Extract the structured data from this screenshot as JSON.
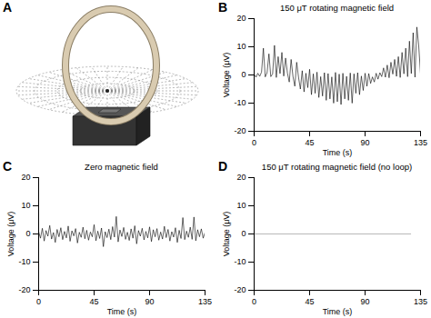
{
  "diagram": {
    "label": "A"
  },
  "chart_data": [
    {
      "type": "line",
      "label": "B",
      "title": "150 μT rotating magnetic field",
      "x_label": "Time (s)",
      "y_label": "Voltage (μV)",
      "color": "#000000",
      "xlim": [
        0,
        135
      ],
      "xticks": [
        0,
        45,
        90,
        135
      ],
      "ylim": [
        -20,
        20
      ],
      "yticks": [
        -20,
        -10,
        0,
        10,
        20
      ],
      "x": [
        0,
        1.5,
        3,
        4.5,
        6,
        7.5,
        9,
        10.5,
        12,
        13.5,
        15,
        16.5,
        18,
        19.5,
        21,
        22.5,
        24,
        25.5,
        27,
        28.5,
        30,
        31.5,
        33,
        34.5,
        36,
        37.5,
        39,
        40.5,
        42,
        43.5,
        45,
        46.5,
        48,
        49.5,
        51,
        52.5,
        54,
        55.5,
        57,
        58.5,
        60,
        61.5,
        63,
        64.5,
        66,
        67.5,
        69,
        70.5,
        72,
        73.5,
        75,
        76.5,
        78,
        79.5,
        81,
        82.5,
        84,
        85.5,
        87,
        88.5,
        90,
        91.5,
        93,
        94.5,
        96,
        97.5,
        99,
        100.5,
        102,
        103.5,
        105,
        106.5,
        108,
        109.5,
        111,
        112.5,
        114,
        115.5,
        117,
        118.5,
        120,
        121.5,
        123,
        124.5,
        126,
        127.5,
        129,
        130.5,
        132,
        133.5,
        135
      ],
      "values": [
        0.3,
        -0.8,
        0.6,
        -0.5,
        1.0,
        9.5,
        -0.7,
        0.8,
        7.5,
        -0.6,
        0.4,
        10.5,
        -0.9,
        6.5,
        0.5,
        8.0,
        -0.4,
        6.0,
        0.7,
        -2.5,
        5.5,
        -0.5,
        -4.0,
        4.5,
        -0.8,
        -5.0,
        1.5,
        -6.0,
        0.6,
        -4.5,
        2.0,
        -7.0,
        0.4,
        -6.5,
        1.0,
        -8.0,
        -0.6,
        -7.5,
        0.8,
        -9.0,
        0.5,
        -8.5,
        -0.7,
        -10.0,
        0.9,
        -9.5,
        0.3,
        -10.5,
        0.6,
        -8.5,
        -0.5,
        -9.0,
        0.7,
        -10.0,
        0.4,
        -6.5,
        0.8,
        -7.0,
        -0.4,
        -5.5,
        0.6,
        -4.0,
        0.5,
        -3.0,
        -0.7,
        -2.5,
        0.6,
        -1.5,
        0.8,
        -0.6,
        2.5,
        -0.8,
        3.5,
        -1.0,
        4.5,
        0.3,
        5.5,
        -0.5,
        6.5,
        -0.9,
        8.0,
        0.4,
        9.5,
        -0.6,
        12.0,
        0.5,
        15.0,
        -0.8,
        17.0,
        10.5,
        0.4
      ]
    },
    {
      "type": "line",
      "label": "C",
      "title": "Zero magnetic field",
      "x_label": "Time (s)",
      "y_label": "Voltage (μV)",
      "color": "#000000",
      "xlim": [
        0,
        135
      ],
      "xticks": [
        0,
        45,
        90,
        135
      ],
      "ylim": [
        -20,
        20
      ],
      "yticks": [
        -20,
        -10,
        0,
        10,
        20
      ],
      "x": [
        0,
        1.5,
        3,
        4.5,
        6,
        7.5,
        9,
        10.5,
        12,
        13.5,
        15,
        16.5,
        18,
        19.5,
        21,
        22.5,
        24,
        25.5,
        27,
        28.5,
        30,
        31.5,
        33,
        34.5,
        36,
        37.5,
        39,
        40.5,
        42,
        43.5,
        45,
        46.5,
        48,
        49.5,
        51,
        52.5,
        54,
        55.5,
        57,
        58.5,
        60,
        61.5,
        63,
        64.5,
        66,
        67.5,
        69,
        70.5,
        72,
        73.5,
        75,
        76.5,
        78,
        79.5,
        81,
        82.5,
        84,
        85.5,
        87,
        88.5,
        90,
        91.5,
        93,
        94.5,
        96,
        97.5,
        99,
        100.5,
        102,
        103.5,
        105,
        106.5,
        108,
        109.5,
        111,
        112.5,
        114,
        115.5,
        117,
        118.5,
        120,
        121.5,
        123,
        124.5,
        126,
        127.5,
        129,
        130.5,
        132,
        133.5,
        135
      ],
      "values": [
        0.8,
        -1.5,
        2.0,
        -2.5,
        1.2,
        -0.8,
        3.0,
        -1.8,
        0.5,
        -3.0,
        1.6,
        -1.0,
        2.2,
        -2.0,
        0.9,
        -1.4,
        2.8,
        -2.6,
        1.1,
        -0.7,
        1.9,
        -3.2,
        0.6,
        -1.2,
        2.4,
        -1.7,
        1.3,
        -2.2,
        0.7,
        -1.0,
        3.3,
        -2.4,
        1.0,
        -1.6,
        2.1,
        -4.5,
        0.8,
        -1.3,
        1.7,
        -2.0,
        2.6,
        -1.1,
        6.2,
        -2.8,
        1.4,
        -0.9,
        2.3,
        -1.9,
        0.6,
        -2.3,
        1.8,
        -1.5,
        2.9,
        -3.5,
        1.2,
        -0.8,
        2.0,
        -2.1,
        0.9,
        -1.4,
        2.5,
        -2.7,
        1.5,
        -1.0,
        1.9,
        -2.2,
        0.7,
        -1.8,
        2.7,
        -1.3,
        1.6,
        -2.5,
        0.8,
        -1.1,
        2.2,
        -3.0,
        1.3,
        -1.6,
        5.8,
        -2.0,
        1.0,
        -1.2,
        2.4,
        -1.9,
        6.0,
        -2.4,
        1.5,
        -1.0,
        1.8,
        -1.5,
        0.6
      ]
    },
    {
      "type": "line",
      "label": "D",
      "title": "150 μT rotating magnetic field (no loop)",
      "x_label": "Time (s)",
      "y_label": "Voltage (μV)",
      "color": "#888888",
      "xlim": [
        0,
        135
      ],
      "xticks": [
        0,
        45,
        90,
        135
      ],
      "ylim": [
        -20,
        20
      ],
      "yticks": [
        -20,
        -10,
        0,
        10,
        20
      ],
      "x": [
        0,
        127
      ],
      "values": [
        0,
        0
      ]
    }
  ]
}
